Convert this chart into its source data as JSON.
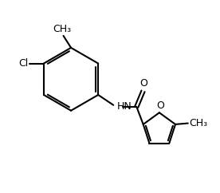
{
  "bg_color": "#ffffff",
  "line_color": "#000000",
  "bond_width": 1.5,
  "font_size": 9,
  "figsize": [
    2.76,
    2.42
  ],
  "dpi": 100,
  "xlim": [
    0,
    10
  ],
  "ylim": [
    0,
    8.8
  ]
}
